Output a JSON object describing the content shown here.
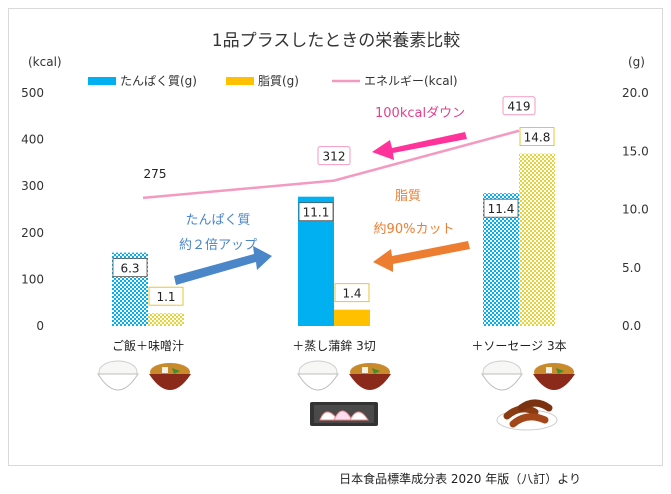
{
  "chart_data": {
    "type": "bar",
    "title": "1品プラスしたときの栄養素比較",
    "categories": [
      "ご飯＋味噌汁",
      "＋蒸し蒲鉾 3切",
      "＋ソーセージ 3本"
    ],
    "series": [
      {
        "name": "たんぱく質(g)",
        "axis": "right",
        "values": [
          6.3,
          11.1,
          11.4
        ],
        "color": "#00b0f0",
        "label_texts": [
          "6.3",
          "11.1",
          "11.4"
        ]
      },
      {
        "name": "脂質(g)",
        "axis": "right",
        "values": [
          1.1,
          1.4,
          14.8
        ],
        "color": "#ffc000",
        "label_texts": [
          "1.1",
          "1.4",
          "14.8"
        ]
      },
      {
        "name": "エネルギー(kcal)",
        "axis": "left",
        "type": "line",
        "values": [
          275,
          312,
          419
        ],
        "color": "#f49ac1",
        "label_texts": [
          "275",
          "312",
          "419"
        ]
      }
    ],
    "y_left": {
      "label": "(kcal)",
      "ylim": [
        0,
        500
      ],
      "ticks": [
        "0",
        "100",
        "200",
        "300",
        "400",
        "500"
      ]
    },
    "y_right": {
      "label": "(g)",
      "ylim": [
        0,
        20
      ],
      "ticks": [
        "0.0",
        "5.0",
        "10.0",
        "15.0",
        "20.0"
      ]
    },
    "legend_position": "top",
    "grid": false,
    "annotations": {
      "down": "100kcalダウン",
      "protein_1": "たんぱく質",
      "protein_2": "約２倍アップ",
      "fat_1": "脂質",
      "fat_2": "約90%カット"
    },
    "colors": {
      "down_arrow": "#ff3399",
      "protein_arrow": "#4a86c8",
      "fat_arrow": "#ed7d31",
      "down_text": "#e83e8c",
      "protein_text": "#4a86c8",
      "fat_text": "#ed7d31"
    }
  },
  "source": "日本食品標準成分表 2020 年版（八訂）より"
}
